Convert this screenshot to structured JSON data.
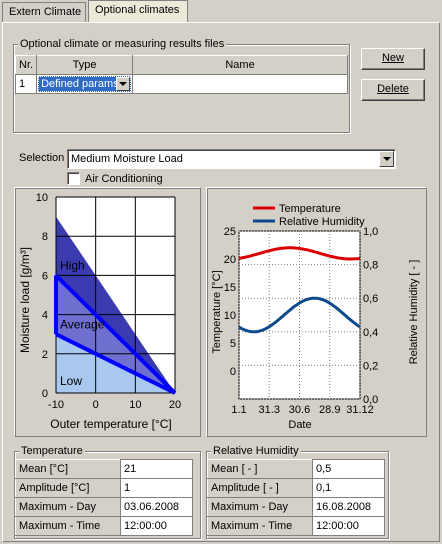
{
  "tabs": [
    {
      "label": "Extern Climate",
      "active": false
    },
    {
      "label": "Optional climates",
      "active": true
    }
  ],
  "optional_group": {
    "title": "Optional climate or measuring results  files",
    "columns": {
      "nr": "Nr.",
      "type": "Type",
      "name": "Name"
    },
    "row": {
      "nr": "1",
      "type": "Defined params",
      "name": ""
    }
  },
  "buttons": {
    "new": "New",
    "delete": "Delete"
  },
  "selection": {
    "label": "Selection",
    "value": "Medium Moisture Load"
  },
  "air_conditioning": {
    "label": "Air Conditioning",
    "checked": false
  },
  "colors": {
    "dark_band": "#3b3bb0",
    "mid_band": "#6f6fd0",
    "light_band": "#a8c8f0",
    "outline": "#0000ff",
    "temperature": "#dd0000",
    "humidity": "#0c4a8c"
  },
  "chart_data": [
    {
      "type": "area",
      "title": "",
      "xlabel": "Outer temperature [°C]",
      "ylabel": "Moisture load [g/m³]",
      "xlim": [
        -10,
        20
      ],
      "ylim": [
        0,
        10
      ],
      "x_ticks": [
        "-10",
        "0",
        "10",
        "20"
      ],
      "y_ticks": [
        "0",
        "2",
        "4",
        "6",
        "8",
        "10"
      ],
      "grid": true,
      "bands": [
        {
          "name": "High",
          "points": [
            [
              -10,
              9
            ],
            [
              20,
              0
            ]
          ]
        },
        {
          "name": "Average",
          "points": [
            [
              -10,
              6
            ],
            [
              20,
              0
            ]
          ]
        },
        {
          "name": "Low",
          "points": [
            [
              -10,
              3
            ],
            [
              20,
              0
            ]
          ]
        }
      ],
      "series": [
        {
          "name": "Average",
          "x": [
            -10,
            20
          ],
          "y": [
            6,
            0
          ]
        },
        {
          "name": "Low",
          "x": [
            -10,
            20
          ],
          "y": [
            3,
            0
          ]
        }
      ]
    },
    {
      "type": "line",
      "title": "",
      "xlabel": "Date",
      "ylabel": "Temperature [°C]",
      "ylabel_right": "Relative Humidity [ - ]",
      "x_ticks": [
        "1.1",
        "31.3",
        "30.6",
        "28.9",
        "31.12"
      ],
      "x_range_days": [
        1,
        365
      ],
      "ylim": [
        -5,
        25
      ],
      "y_ticks": [
        "0",
        "5",
        "10",
        "15",
        "20",
        "25"
      ],
      "ylim_right": [
        0,
        1
      ],
      "y_ticks_right": [
        "0,0",
        "0,2",
        "0,4",
        "0,6",
        "0,8",
        "1,0"
      ],
      "grid": "dotted",
      "legend_position": "top",
      "series": [
        {
          "name": "Temperature",
          "axis": "left",
          "mean": 21,
          "amplitude": 1,
          "max_day": 154
        },
        {
          "name": "Relative Humidity",
          "axis": "right",
          "mean": 0.5,
          "amplitude": 0.1,
          "max_day": 228
        }
      ]
    }
  ],
  "temperature": {
    "title": "Temperature",
    "rows": [
      {
        "label": "Mean [°C]",
        "value": "21"
      },
      {
        "label": "Amplitude [°C]",
        "value": "1"
      },
      {
        "label": "Maximum - Day",
        "value": "03.06.2008"
      },
      {
        "label": "Maximum - Time",
        "value": "12:00:00"
      }
    ]
  },
  "humidity": {
    "title": "Relative Humidity",
    "rows": [
      {
        "label": "Mean [ - ]",
        "value": "0,5"
      },
      {
        "label": "Amplitude [ - ]",
        "value": "0,1"
      },
      {
        "label": "Maximum - Day",
        "value": "16.08.2008"
      },
      {
        "label": "Maximum - Time",
        "value": "12:00:00"
      }
    ]
  }
}
